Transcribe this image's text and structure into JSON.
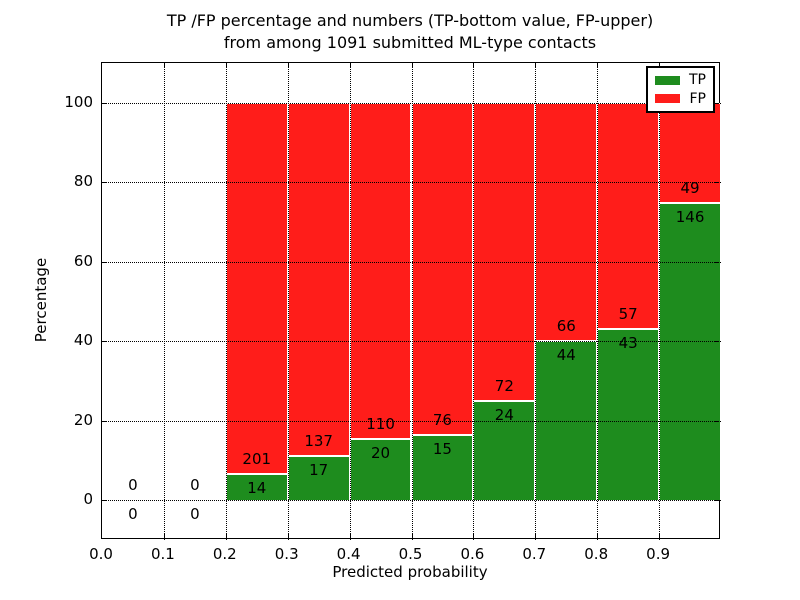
{
  "title": {
    "line1": "TP /FP percentage and numbers (TP-bottom value, FP-upper)",
    "line2": "from among 1091 submitted ML-type contacts"
  },
  "axes": {
    "x_label": "Predicted probability",
    "y_label": "Percentage"
  },
  "legend": {
    "position": "upper right",
    "entries": [
      {
        "label": "TP",
        "color": "#1e8c1e"
      },
      {
        "label": "FP",
        "color": "#ff1d1a"
      }
    ]
  },
  "colors": {
    "tp": "#1e8c1e",
    "fp": "#ff1d1a",
    "axis": "#000000",
    "background": "#ffffff"
  },
  "chart_data": {
    "type": "bar",
    "stacked": true,
    "title": "TP /FP percentage and numbers (TP-bottom value, FP-upper) from among 1091 submitted ML-type contacts",
    "xlabel": "Predicted probability",
    "ylabel": "Percentage",
    "total_contacts": 1091,
    "bin_width": 0.1,
    "bin_starts": [
      0.0,
      0.1,
      0.2,
      0.3,
      0.4,
      0.5,
      0.6,
      0.7,
      0.8,
      0.9
    ],
    "series": [
      {
        "name": "TP",
        "color": "#1e8c1e",
        "counts": [
          0,
          0,
          14,
          17,
          20,
          15,
          24,
          44,
          43,
          146
        ]
      },
      {
        "name": "FP",
        "color": "#ff1d1a",
        "counts": [
          0,
          0,
          201,
          137,
          110,
          76,
          72,
          66,
          57,
          49
        ]
      }
    ],
    "bars_show": "percentage of bin total (stacked to 100%), count labels printed on bars",
    "xlim": [
      0.0,
      1.0
    ],
    "ylim": [
      -10,
      110
    ],
    "x_ticks": [
      {
        "pos": 0.0,
        "label": "0.0"
      },
      {
        "pos": 0.1,
        "label": "0.1"
      },
      {
        "pos": 0.2,
        "label": "0.2"
      },
      {
        "pos": 0.3,
        "label": "0.3"
      },
      {
        "pos": 0.4,
        "label": "0.4"
      },
      {
        "pos": 0.5,
        "label": "0.5"
      },
      {
        "pos": 0.6,
        "label": "0.6"
      },
      {
        "pos": 0.7,
        "label": "0.7"
      },
      {
        "pos": 0.8,
        "label": "0.8"
      },
      {
        "pos": 0.9,
        "label": "0.9"
      }
    ],
    "y_ticks": [
      {
        "pos": 0,
        "label": "0"
      },
      {
        "pos": 20,
        "label": "20"
      },
      {
        "pos": 40,
        "label": "40"
      },
      {
        "pos": 60,
        "label": "60"
      },
      {
        "pos": 80,
        "label": "80"
      },
      {
        "pos": 100,
        "label": "100"
      }
    ],
    "grid": true,
    "grid_style": "dotted, drawn above bars",
    "legend_position": "upper right"
  }
}
